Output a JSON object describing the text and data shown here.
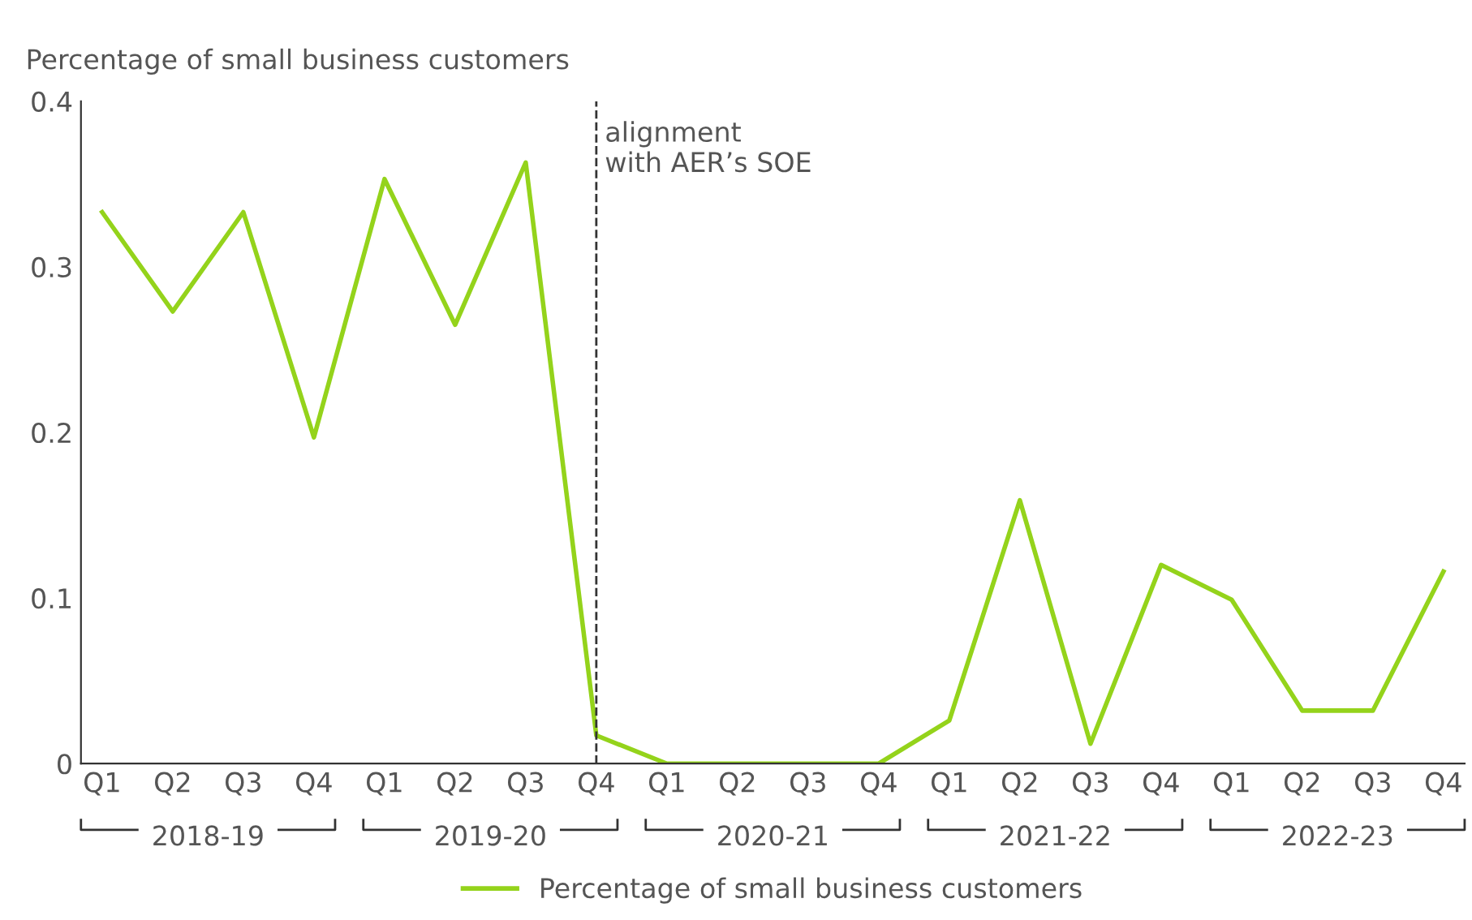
{
  "chart_data": {
    "type": "line",
    "ylabel": "Percentage of small business customers",
    "categories": [
      "Q1",
      "Q2",
      "Q3",
      "Q4",
      "Q1",
      "Q2",
      "Q3",
      "Q4",
      "Q1",
      "Q2",
      "Q3",
      "Q4",
      "Q1",
      "Q2",
      "Q3",
      "Q4",
      "Q1",
      "Q2",
      "Q3",
      "Q4"
    ],
    "series": [
      {
        "name": "Percentage of small business customers",
        "color": "#94d31b",
        "values": [
          0.333,
          0.273,
          0.333,
          0.197,
          0.353,
          0.265,
          0.363,
          0.017,
          0,
          0,
          0,
          0,
          0.026,
          0.159,
          0.012,
          0.12,
          0.099,
          0.032,
          0.032,
          0.116
        ]
      }
    ],
    "ylim": [
      0,
      0.4
    ],
    "yticks": [
      0,
      0.1,
      0.2,
      0.3,
      0.4
    ],
    "annotations": [
      "alignment\nwith AER’s SOE",
      "2018-19",
      "2019-20",
      "2020-21",
      "2021-22",
      "2022-23"
    ],
    "legend": "bottom",
    "marker": "none",
    "line_style": "solid"
  }
}
